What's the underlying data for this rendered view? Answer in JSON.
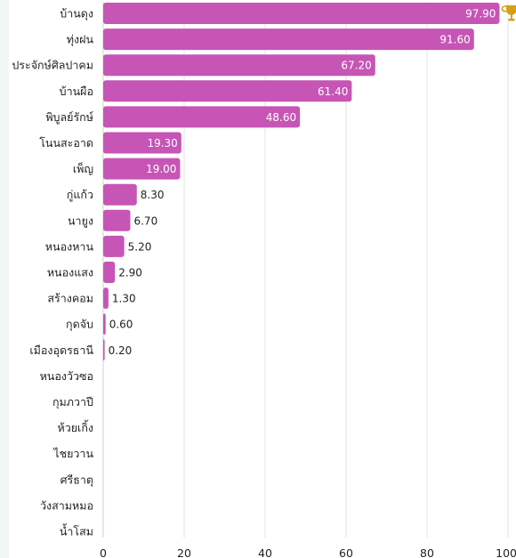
{
  "chart_data": {
    "type": "bar",
    "orientation": "horizontal",
    "categories": [
      "บ้านดุง",
      "ทุ่งฝน",
      "ประจักษ์ศิลปาคม",
      "บ้านผือ",
      "พิบูลย์รักษ์",
      "โนนสะอาด",
      "เพ็ญ",
      "กู่แก้ว",
      "นายูง",
      "หนองหาน",
      "หนองแสง",
      "สร้างคอม",
      "กุดจับ",
      "เมืองอุดรธานี",
      "หนองวัวซอ",
      "กุมภวาปี",
      "ห้วยเกิ้ง",
      "ไชยวาน",
      "ศรีธาตุ",
      "วังสามหมอ",
      "น้ำโสม"
    ],
    "values": [
      97.9,
      91.6,
      67.2,
      61.4,
      48.6,
      19.3,
      19.0,
      8.3,
      6.7,
      5.2,
      2.9,
      1.3,
      0.6,
      0.2,
      null,
      null,
      null,
      null,
      null,
      null,
      null
    ],
    "value_labels": [
      "97.90",
      "91.60",
      "67.20",
      "61.40",
      "48.60",
      "19.30",
      "19.00",
      "8.30",
      "6.70",
      "5.20",
      "2.90",
      "1.30",
      "0.60",
      "0.20",
      "",
      "",
      "",
      "",
      "",
      "",
      ""
    ],
    "xlim": [
      0,
      100
    ],
    "xticks": [
      0,
      20,
      40,
      60,
      80,
      100
    ],
    "grid": true,
    "bar_color": "#c655b5",
    "top_marker": "trophy-icon",
    "trophy_color": "#d4a017"
  }
}
